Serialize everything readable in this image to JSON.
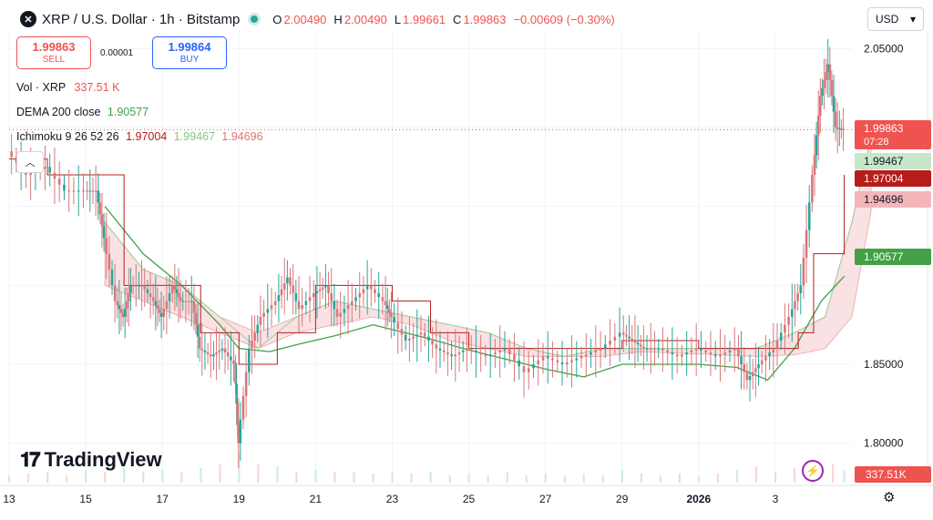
{
  "header": {
    "symbol_icon": "xrp-logo-icon",
    "symbol_icon_glyph": "✕",
    "title": "XRP / U.S. Dollar · 1h · Bitstamp",
    "ohlc": {
      "o_label": "O",
      "o_value": "2.00490",
      "h_label": "H",
      "h_value": "2.00490",
      "l_label": "L",
      "l_value": "1.99661",
      "c_label": "C",
      "c_value": "1.99863",
      "change": "−0.00609 (−0.30%)"
    }
  },
  "currency_select": {
    "value": "USD"
  },
  "trade": {
    "sell_price": "1.99863",
    "sell_label": "SELL",
    "spread": "0.00001",
    "buy_price": "1.99864",
    "buy_label": "BUY"
  },
  "indicators": {
    "vol": {
      "name": "Vol · XRP",
      "value": "337.51 K"
    },
    "dema": {
      "name": "DEMA 200 close",
      "value": "1.90577"
    },
    "ichimoku": {
      "name": "Ichimoku 9 26 52 26",
      "v1": "1.97004",
      "v2": "1.99467",
      "v3": "1.94696"
    }
  },
  "logo_text": "TradingView",
  "colors": {
    "up": "#26a69a",
    "down": "#ef5350",
    "candle": "#d9777a",
    "dema": "#43a047",
    "cloud_up": "#c8e6c9",
    "cloud_down": "#f8d7da",
    "conversion": "#b71c1c",
    "base_line": "#b71c1c",
    "accent": "#2962ff"
  },
  "chart_data": {
    "type": "candlestick",
    "x_ticks": [
      "13",
      "15",
      "17",
      "19",
      "21",
      "23",
      "25",
      "27",
      "29",
      "2026",
      "3"
    ],
    "y_ticks": [
      "2.05000",
      "1.85000",
      "1.80000"
    ],
    "ylim": [
      1.775,
      2.06
    ],
    "xlim": [
      13,
      35
    ],
    "price_labels": [
      {
        "text": "1.99863",
        "sub": "07:28",
        "value": 1.99863,
        "role": "last"
      },
      {
        "text": "1.99467",
        "value": 1.99467,
        "role": "leading-a"
      },
      {
        "text": "1.97004",
        "value": 1.97004,
        "role": "conversion"
      },
      {
        "text": "1.94696",
        "value": 1.94696,
        "role": "leading-b"
      },
      {
        "text": "1.90577",
        "value": 1.90577,
        "role": "dema"
      }
    ],
    "volume_label": "337.51K",
    "close_path": [
      [
        13.0,
        1.985
      ],
      [
        13.5,
        1.97
      ],
      [
        14.0,
        1.975
      ],
      [
        14.5,
        1.96
      ],
      [
        15.0,
        1.96
      ],
      [
        15.3,
        1.96
      ],
      [
        15.5,
        1.93
      ],
      [
        15.8,
        1.89
      ],
      [
        16.0,
        1.88
      ],
      [
        16.2,
        1.9
      ],
      [
        16.5,
        1.9
      ],
      [
        16.8,
        1.89
      ],
      [
        17.0,
        1.88
      ],
      [
        17.3,
        1.9
      ],
      [
        17.5,
        1.89
      ],
      [
        17.8,
        1.89
      ],
      [
        18.0,
        1.86
      ],
      [
        18.3,
        1.855
      ],
      [
        18.6,
        1.86
      ],
      [
        18.9,
        1.85
      ],
      [
        19.0,
        1.8
      ],
      [
        19.3,
        1.86
      ],
      [
        19.6,
        1.88
      ],
      [
        20.0,
        1.89
      ],
      [
        20.3,
        1.905
      ],
      [
        20.6,
        1.885
      ],
      [
        21.0,
        1.895
      ],
      [
        21.3,
        1.9
      ],
      [
        21.6,
        1.88
      ],
      [
        22.0,
        1.89
      ],
      [
        22.4,
        1.9
      ],
      [
        22.8,
        1.89
      ],
      [
        23.0,
        1.88
      ],
      [
        23.4,
        1.865
      ],
      [
        23.8,
        1.87
      ],
      [
        24.2,
        1.86
      ],
      [
        24.6,
        1.855
      ],
      [
        25.0,
        1.86
      ],
      [
        25.5,
        1.855
      ],
      [
        26.0,
        1.86
      ],
      [
        26.5,
        1.845
      ],
      [
        27.0,
        1.855
      ],
      [
        27.5,
        1.85
      ],
      [
        28.0,
        1.855
      ],
      [
        28.5,
        1.86
      ],
      [
        29.0,
        1.87
      ],
      [
        29.3,
        1.865
      ],
      [
        29.6,
        1.86
      ],
      [
        30.0,
        1.86
      ],
      [
        30.5,
        1.855
      ],
      [
        31.0,
        1.86
      ],
      [
        31.5,
        1.855
      ],
      [
        32.0,
        1.86
      ],
      [
        32.3,
        1.84
      ],
      [
        32.6,
        1.85
      ],
      [
        33.0,
        1.86
      ],
      [
        33.4,
        1.88
      ],
      [
        33.7,
        1.9
      ],
      [
        34.0,
        1.97
      ],
      [
        34.2,
        2.02
      ],
      [
        34.4,
        2.04
      ],
      [
        34.6,
        2.0
      ],
      [
        34.8,
        1.99863
      ]
    ],
    "dema_path": [
      [
        15.5,
        1.95
      ],
      [
        16.5,
        1.92
      ],
      [
        17.5,
        1.9
      ],
      [
        18.5,
        1.875
      ],
      [
        19.0,
        1.86
      ],
      [
        19.8,
        1.858
      ],
      [
        20.6,
        1.863
      ],
      [
        21.5,
        1.868
      ],
      [
        22.5,
        1.875
      ],
      [
        23.0,
        1.872
      ],
      [
        24.0,
        1.866
      ],
      [
        25.0,
        1.859
      ],
      [
        26.0,
        1.853
      ],
      [
        27.0,
        1.847
      ],
      [
        28.0,
        1.842
      ],
      [
        29.0,
        1.85
      ],
      [
        30.0,
        1.85
      ],
      [
        31.0,
        1.85
      ],
      [
        32.0,
        1.848
      ],
      [
        32.8,
        1.84
      ],
      [
        33.5,
        1.86
      ],
      [
        34.2,
        1.89
      ],
      [
        34.8,
        1.90577
      ]
    ],
    "conversion_path": [
      [
        13.0,
        1.98
      ],
      [
        14.0,
        1.97
      ],
      [
        15.0,
        1.97
      ],
      [
        16.0,
        1.9
      ],
      [
        17.0,
        1.9
      ],
      [
        18.0,
        1.87
      ],
      [
        19.0,
        1.85
      ],
      [
        20.0,
        1.87
      ],
      [
        21.0,
        1.9
      ],
      [
        22.0,
        1.9
      ],
      [
        23.0,
        1.89
      ],
      [
        24.0,
        1.87
      ],
      [
        25.0,
        1.86
      ],
      [
        26.0,
        1.86
      ],
      [
        27.0,
        1.86
      ],
      [
        28.0,
        1.86
      ],
      [
        29.0,
        1.865
      ],
      [
        30.0,
        1.865
      ],
      [
        31.0,
        1.86
      ],
      [
        32.0,
        1.86
      ],
      [
        33.0,
        1.86
      ],
      [
        33.6,
        1.87
      ],
      [
        34.0,
        1.92
      ],
      [
        34.8,
        1.97004
      ]
    ],
    "cloud": [
      [
        15.5,
        1.94,
        1.9
      ],
      [
        16.5,
        1.91,
        1.89
      ],
      [
        17.5,
        1.9,
        1.88
      ],
      [
        18.5,
        1.88,
        1.87
      ],
      [
        19.5,
        1.86,
        1.87
      ],
      [
        20.5,
        1.88,
        1.87
      ],
      [
        21.5,
        1.89,
        1.875
      ],
      [
        22.5,
        1.885,
        1.88
      ],
      [
        23.5,
        1.88,
        1.875
      ],
      [
        24.5,
        1.875,
        1.865
      ],
      [
        25.5,
        1.87,
        1.86
      ],
      [
        26.5,
        1.86,
        1.855
      ],
      [
        27.5,
        1.855,
        1.855
      ],
      [
        28.5,
        1.86,
        1.855
      ],
      [
        29.5,
        1.86,
        1.858
      ],
      [
        30.5,
        1.86,
        1.857
      ],
      [
        31.5,
        1.86,
        1.856
      ],
      [
        32.5,
        1.86,
        1.855
      ],
      [
        33.5,
        1.87,
        1.856
      ],
      [
        34.3,
        1.88,
        1.86
      ],
      [
        35.0,
        1.94,
        1.88
      ],
      [
        35.5,
        1.99467,
        1.94696
      ]
    ],
    "volume_bars": [
      [
        13.0,
        0.2
      ],
      [
        13.5,
        0.25
      ],
      [
        14.0,
        0.3
      ],
      [
        14.5,
        0.2
      ],
      [
        15.0,
        0.35
      ],
      [
        15.5,
        0.3
      ],
      [
        16.0,
        0.4
      ],
      [
        16.5,
        0.3
      ],
      [
        17.0,
        0.35
      ],
      [
        17.5,
        0.3
      ],
      [
        18.0,
        0.4
      ],
      [
        18.5,
        0.5
      ],
      [
        19.0,
        0.8
      ],
      [
        19.5,
        0.5
      ],
      [
        20.0,
        0.45
      ],
      [
        20.5,
        0.3
      ],
      [
        21.0,
        0.35
      ],
      [
        21.5,
        0.3
      ],
      [
        22.0,
        0.3
      ],
      [
        22.5,
        0.25
      ],
      [
        23.0,
        0.3
      ],
      [
        23.5,
        0.25
      ],
      [
        24.0,
        0.3
      ],
      [
        24.5,
        0.2
      ],
      [
        25.0,
        0.25
      ],
      [
        25.5,
        0.2
      ],
      [
        26.0,
        0.3
      ],
      [
        26.5,
        0.2
      ],
      [
        27.0,
        0.25
      ],
      [
        27.5,
        0.2
      ],
      [
        28.0,
        0.25
      ],
      [
        28.5,
        0.2
      ],
      [
        29.0,
        0.35
      ],
      [
        29.5,
        0.25
      ],
      [
        30.0,
        0.2
      ],
      [
        30.5,
        0.25
      ],
      [
        31.0,
        0.2
      ],
      [
        31.5,
        0.25
      ],
      [
        32.0,
        0.35
      ],
      [
        32.5,
        0.45
      ],
      [
        33.0,
        0.3
      ],
      [
        33.5,
        0.4
      ],
      [
        34.0,
        0.6
      ],
      [
        34.5,
        0.5
      ],
      [
        34.8,
        0.35
      ]
    ]
  }
}
